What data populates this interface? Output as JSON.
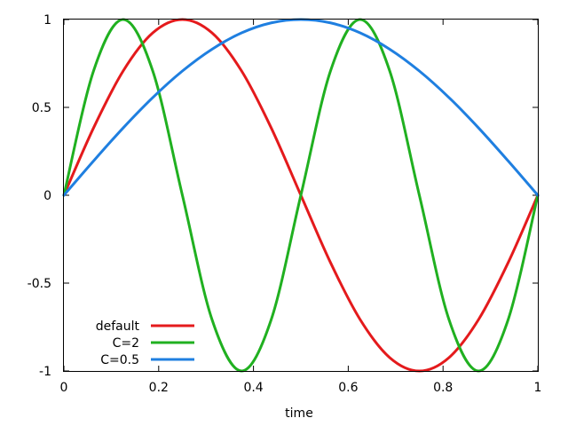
{
  "chart_data": {
    "type": "line",
    "title": "",
    "xlabel": "time",
    "ylabel": "",
    "xlim": [
      0,
      1
    ],
    "ylim": [
      -1,
      1
    ],
    "grid": false,
    "legend_position": "bottom-left",
    "x_ticks": [
      {
        "value": 0,
        "label": "0"
      },
      {
        "value": 0.2,
        "label": "0.2"
      },
      {
        "value": 0.4,
        "label": "0.4"
      },
      {
        "value": 0.6,
        "label": "0.6"
      },
      {
        "value": 0.8,
        "label": "0.8"
      },
      {
        "value": 1,
        "label": "1"
      }
    ],
    "y_ticks": [
      {
        "value": -1,
        "label": "-1"
      },
      {
        "value": -0.5,
        "label": "-0.5"
      },
      {
        "value": 0,
        "label": "0"
      },
      {
        "value": 0.5,
        "label": "0.5"
      },
      {
        "value": 1,
        "label": "1"
      }
    ],
    "x": [
      0,
      0.0625,
      0.125,
      0.1875,
      0.25,
      0.3125,
      0.375,
      0.4375,
      0.5,
      0.5625,
      0.625,
      0.6875,
      0.75,
      0.8125,
      0.875,
      0.9375,
      1
    ],
    "series": [
      {
        "name": "default",
        "color": "#e41a1c",
        "values": [
          0,
          0.383,
          0.707,
          0.924,
          1,
          0.924,
          0.707,
          0.383,
          0,
          -0.383,
          -0.707,
          -0.924,
          -1,
          -0.924,
          -0.707,
          -0.383,
          0
        ]
      },
      {
        "name": "C=2",
        "color": "#20b020",
        "values": [
          0,
          0.707,
          1,
          0.707,
          0,
          -0.707,
          -1,
          -0.707,
          0,
          0.707,
          1,
          0.707,
          0,
          -0.707,
          -1,
          -0.707,
          0
        ]
      },
      {
        "name": "C=0.5",
        "color": "#1f7fe0",
        "values": [
          0,
          0.195,
          0.383,
          0.556,
          0.707,
          0.831,
          0.924,
          0.981,
          1,
          0.981,
          0.924,
          0.831,
          0.707,
          0.556,
          0.383,
          0.195,
          0
        ]
      }
    ]
  }
}
